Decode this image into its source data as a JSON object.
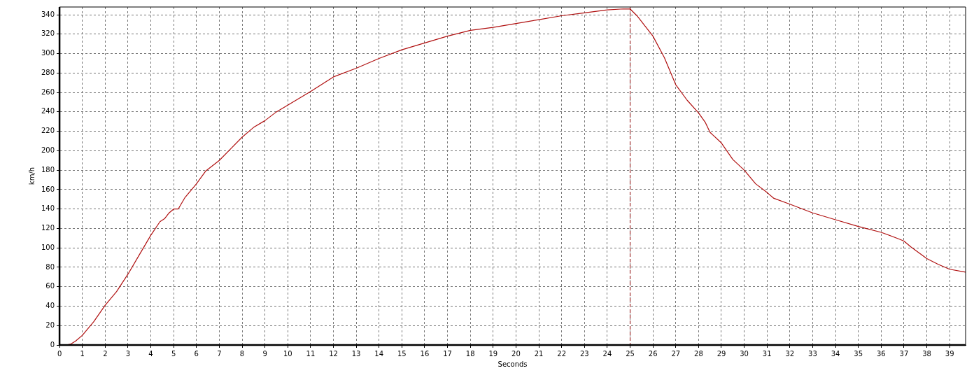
{
  "chart_data": {
    "type": "line",
    "xlabel": "Seconds",
    "ylabel": "km/h",
    "xlim": [
      0,
      39.7
    ],
    "ylim": [
      0,
      348
    ],
    "xticks": [
      0,
      1,
      2,
      3,
      4,
      5,
      6,
      7,
      8,
      9,
      10,
      11,
      12,
      13,
      14,
      15,
      16,
      17,
      18,
      19,
      20,
      21,
      22,
      23,
      24,
      25,
      26,
      27,
      28,
      29,
      30,
      31,
      32,
      33,
      34,
      35,
      36,
      37,
      38,
      39
    ],
    "yticks": [
      0,
      20,
      40,
      60,
      80,
      100,
      120,
      140,
      160,
      180,
      200,
      220,
      240,
      260,
      280,
      300,
      320,
      340
    ],
    "grid": true,
    "marker": "none",
    "line_style": "solid",
    "ref_lines": [
      {
        "axis": "x",
        "value": 25,
        "color": "#8b0000",
        "line_style": "dashed"
      }
    ],
    "series": [
      {
        "color": "#b01010",
        "x": [
          0,
          0.3,
          0.5,
          0.7,
          1,
          1.5,
          2,
          2.5,
          3,
          3.5,
          4,
          4.4,
          4.6,
          4.8,
          5,
          5.2,
          5.5,
          6,
          6.4,
          7,
          7.5,
          8,
          8.5,
          9,
          9.5,
          10,
          11,
          12,
          13,
          14,
          15,
          16,
          17,
          18,
          19,
          20,
          21,
          22,
          23,
          24,
          24.7,
          25,
          25.3,
          25.7,
          26,
          26.5,
          27,
          27.5,
          28,
          28.3,
          28.5,
          29,
          29.5,
          30,
          30.5,
          31,
          31.3,
          32,
          33,
          34,
          35,
          36,
          36.8,
          37,
          37.3,
          38,
          38.5,
          39,
          39.7
        ],
        "values": [
          0,
          0,
          1,
          4,
          10,
          24,
          41,
          55,
          73,
          93,
          113,
          127,
          130,
          136,
          140,
          140,
          152,
          166,
          179,
          190,
          202,
          214,
          224,
          231,
          240,
          247,
          261,
          276,
          285,
          295,
          304,
          311,
          318,
          324,
          327,
          331,
          335,
          339,
          342,
          345,
          346,
          346,
          339,
          327,
          318,
          296,
          268,
          252,
          239,
          229,
          219,
          208,
          191,
          180,
          166,
          157,
          151,
          145,
          136,
          129,
          122,
          116,
          109,
          107,
          101,
          89,
          83,
          78,
          75
        ]
      }
    ]
  }
}
